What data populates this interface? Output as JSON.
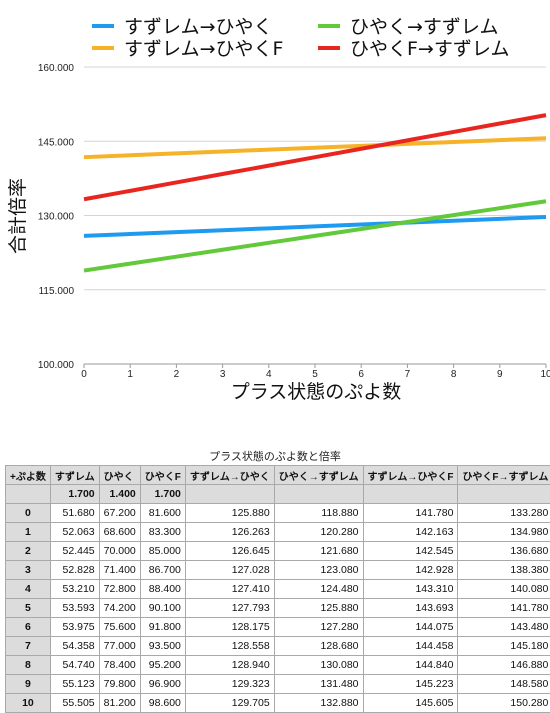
{
  "chart_data": {
    "type": "line",
    "title": "",
    "xlabel": "プラス状態のぷよ数",
    "ylabel": "合計倍率",
    "x": [
      0,
      1,
      2,
      3,
      4,
      5,
      6,
      7,
      8,
      9,
      10
    ],
    "x_ticks": [
      "0",
      "1",
      "2",
      "3",
      "4",
      "5",
      "6",
      "7",
      "8",
      "9",
      "10"
    ],
    "ylim": [
      100,
      160
    ],
    "y_ticks": [
      "100.000",
      "115.000",
      "130.000",
      "145.000",
      "160.000"
    ],
    "grid": true,
    "legend_position": "top",
    "series": [
      {
        "name": "すずレム→ひやく",
        "color": "#1E9BF0",
        "values": [
          125.88,
          126.263,
          126.645,
          127.028,
          127.41,
          127.793,
          128.175,
          128.558,
          128.94,
          129.323,
          129.705
        ]
      },
      {
        "name": "ひやく→すずレム",
        "color": "#62C93A",
        "values": [
          118.88,
          120.28,
          121.68,
          123.08,
          124.48,
          125.88,
          127.28,
          128.68,
          130.08,
          131.48,
          132.88
        ]
      },
      {
        "name": "すずレム→ひやくF",
        "color": "#F7B327",
        "values": [
          141.78,
          142.163,
          142.545,
          142.928,
          143.31,
          143.693,
          144.075,
          144.458,
          144.84,
          145.223,
          145.605
        ]
      },
      {
        "name": "ひやくF→すずレム",
        "color": "#E8261F",
        "values": [
          133.28,
          134.98,
          136.68,
          138.38,
          140.08,
          141.78,
          143.48,
          145.18,
          146.88,
          148.58,
          150.28
        ]
      }
    ]
  },
  "table": {
    "title": "プラス状態のぷよ数と倍率",
    "headers": [
      "+ぷよ数",
      "すずレム",
      "ひやく",
      "ひやくF",
      "すずレム→ひやく",
      "ひやく→すずレム",
      "すずレム→ひやくF",
      "ひやくF→すずレム"
    ],
    "multipliers": [
      "",
      "1.700",
      "1.400",
      "1.700",
      "",
      "",
      "",
      ""
    ],
    "rows": [
      [
        "0",
        "51.680",
        "67.200",
        "81.600",
        "125.880",
        "118.880",
        "141.780",
        "133.280"
      ],
      [
        "1",
        "52.063",
        "68.600",
        "83.300",
        "126.263",
        "120.280",
        "142.163",
        "134.980"
      ],
      [
        "2",
        "52.445",
        "70.000",
        "85.000",
        "126.645",
        "121.680",
        "142.545",
        "136.680"
      ],
      [
        "3",
        "52.828",
        "71.400",
        "86.700",
        "127.028",
        "123.080",
        "142.928",
        "138.380"
      ],
      [
        "4",
        "53.210",
        "72.800",
        "88.400",
        "127.410",
        "124.480",
        "143.310",
        "140.080"
      ],
      [
        "5",
        "53.593",
        "74.200",
        "90.100",
        "127.793",
        "125.880",
        "143.693",
        "141.780"
      ],
      [
        "6",
        "53.975",
        "75.600",
        "91.800",
        "128.175",
        "127.280",
        "144.075",
        "143.480"
      ],
      [
        "7",
        "54.358",
        "77.000",
        "93.500",
        "128.558",
        "128.680",
        "144.458",
        "145.180"
      ],
      [
        "8",
        "54.740",
        "78.400",
        "95.200",
        "128.940",
        "130.080",
        "144.840",
        "146.880"
      ],
      [
        "9",
        "55.123",
        "79.800",
        "96.900",
        "129.323",
        "131.480",
        "145.223",
        "148.580"
      ],
      [
        "10",
        "55.505",
        "81.200",
        "98.600",
        "129.705",
        "132.880",
        "145.605",
        "150.280"
      ]
    ]
  }
}
